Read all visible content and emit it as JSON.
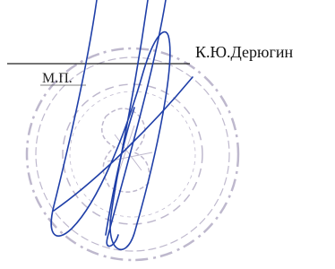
{
  "signature": {
    "name": "К.Ю.Дерюгин",
    "seal_label": "М.П."
  }
}
